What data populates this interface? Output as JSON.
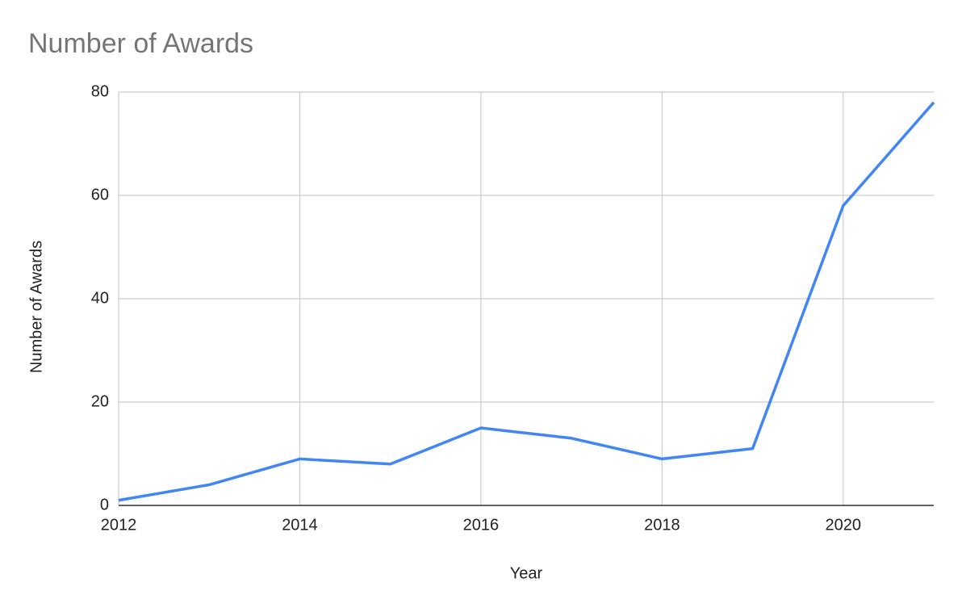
{
  "chart_data": {
    "type": "line",
    "title": "Number of Awards",
    "x_label": "Year",
    "y_label": "Number of Awards",
    "x": [
      2012,
      2013,
      2014,
      2015,
      2016,
      2017,
      2018,
      2019,
      2020,
      2021
    ],
    "series": [
      {
        "name": "Number of Awards",
        "color": "#4285f4",
        "values": [
          1,
          4,
          9,
          8,
          15,
          13,
          9,
          11,
          58,
          78
        ]
      }
    ],
    "xlim": [
      2012,
      2021
    ],
    "xticks": [
      2012,
      2014,
      2016,
      2018,
      2020
    ],
    "ylim": [
      0,
      80
    ],
    "yticks": [
      0,
      20,
      40,
      60,
      80
    ],
    "grid": true
  }
}
